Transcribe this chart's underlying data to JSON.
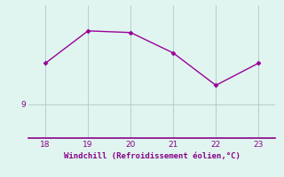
{
  "x": [
    18,
    19,
    20,
    21,
    22,
    23
  ],
  "y": [
    10.2,
    11.15,
    11.1,
    10.5,
    9.55,
    10.2
  ],
  "line_color": "#990099",
  "marker": "D",
  "marker_size": 2.5,
  "background_color": "#e0f5f0",
  "grid_color": "#b0c8c8",
  "xlabel": "Windchill (Refroidissement éolien,°C)",
  "xlabel_color": "#880088",
  "tick_color": "#880088",
  "bottom_line_color": "#880088",
  "yticks": [
    9
  ],
  "xticks": [
    18,
    19,
    20,
    21,
    22,
    23
  ],
  "ylim": [
    8.0,
    11.9
  ],
  "xlim": [
    17.6,
    23.4
  ],
  "figsize": [
    3.2,
    2.0
  ],
  "dpi": 100
}
